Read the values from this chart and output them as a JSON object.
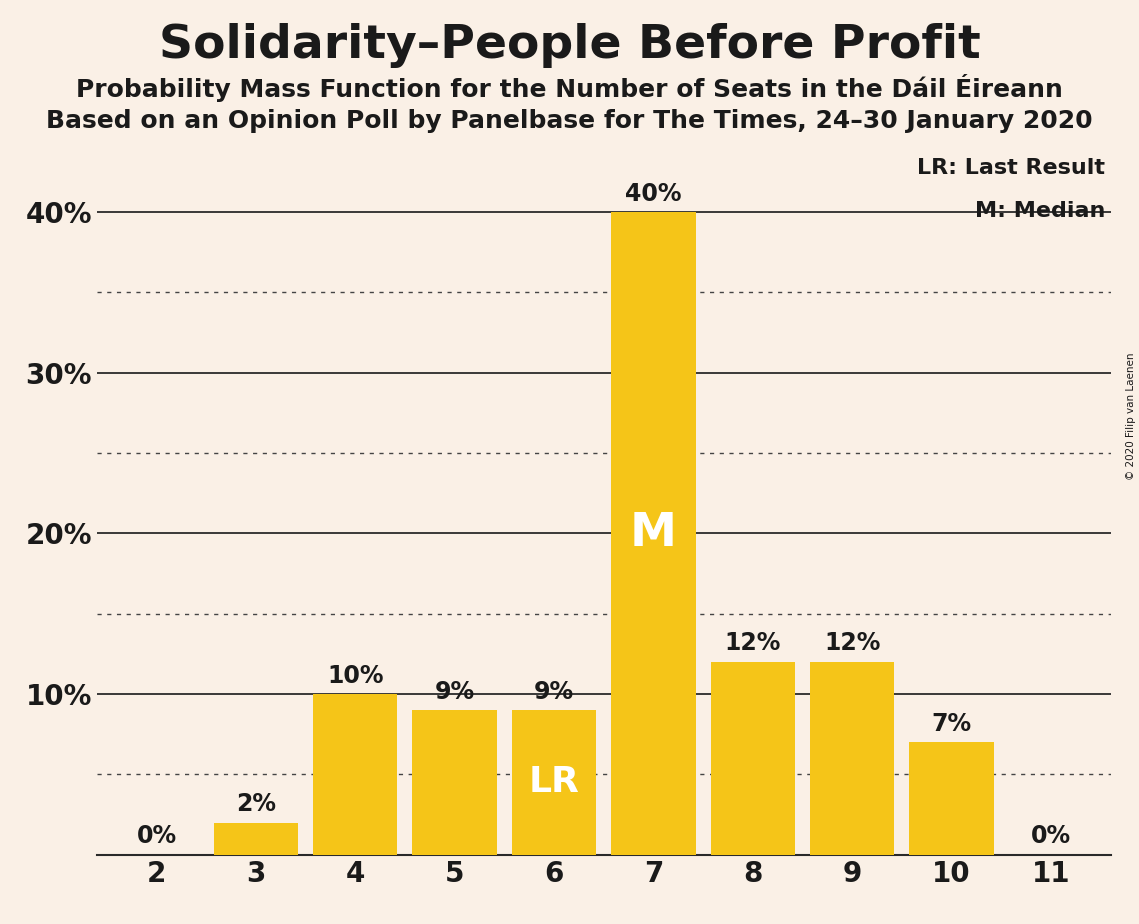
{
  "title": "Solidarity–People Before Profit",
  "subtitle1": "Probability Mass Function for the Number of Seats in the Dáil Éireann",
  "subtitle2": "Based on an Opinion Poll by Panelbase for The Times, 24–30 January 2020",
  "copyright": "© 2020 Filip van Laenen",
  "categories": [
    2,
    3,
    4,
    5,
    6,
    7,
    8,
    9,
    10,
    11
  ],
  "values": [
    0,
    2,
    10,
    9,
    9,
    40,
    12,
    12,
    7,
    0
  ],
  "bar_color": "#F5C518",
  "background_color": "#FAF0E6",
  "text_color": "#1a1a1a",
  "median_seat": 7,
  "lr_seat": 6,
  "ylim": [
    0,
    44
  ],
  "solid_yticks": [
    10,
    20,
    30,
    40
  ],
  "dotted_yticks": [
    5,
    15,
    25,
    35
  ],
  "title_fontsize": 34,
  "subtitle_fontsize": 18,
  "tick_fontsize": 20,
  "label_fontsize": 17,
  "legend_fontsize": 16
}
